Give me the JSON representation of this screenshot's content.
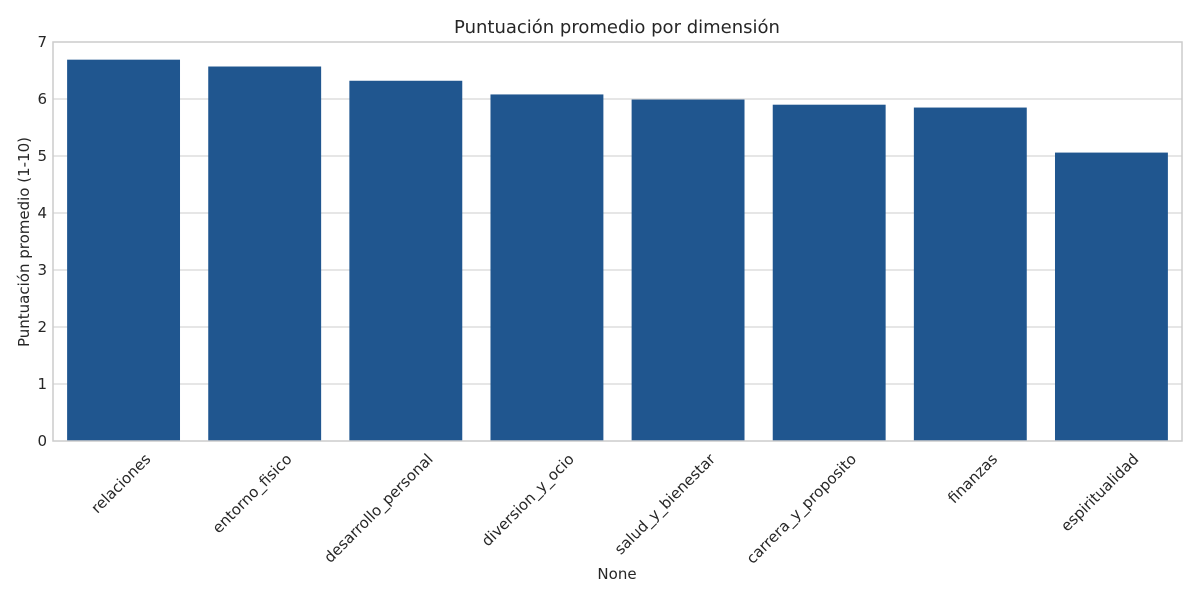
{
  "chart_data": {
    "type": "bar",
    "title": "Puntuación promedio por dimensión",
    "xlabel": "None",
    "ylabel": "Puntuación promedio (1-10)",
    "categories": [
      "relaciones",
      "entorno_fisico",
      "desarrollo_personal",
      "diversion_y_ocio",
      "salud_y_bienestar",
      "carrera_y_proposito",
      "finanzas",
      "espiritualidad"
    ],
    "values": [
      6.69,
      6.57,
      6.32,
      6.08,
      5.99,
      5.9,
      5.85,
      5.06
    ],
    "ylim": [
      0,
      7
    ],
    "yticks": [
      "0",
      "1",
      "2",
      "3",
      "4",
      "5",
      "6",
      "7"
    ],
    "grid": true,
    "bar_color": "#20568f"
  }
}
